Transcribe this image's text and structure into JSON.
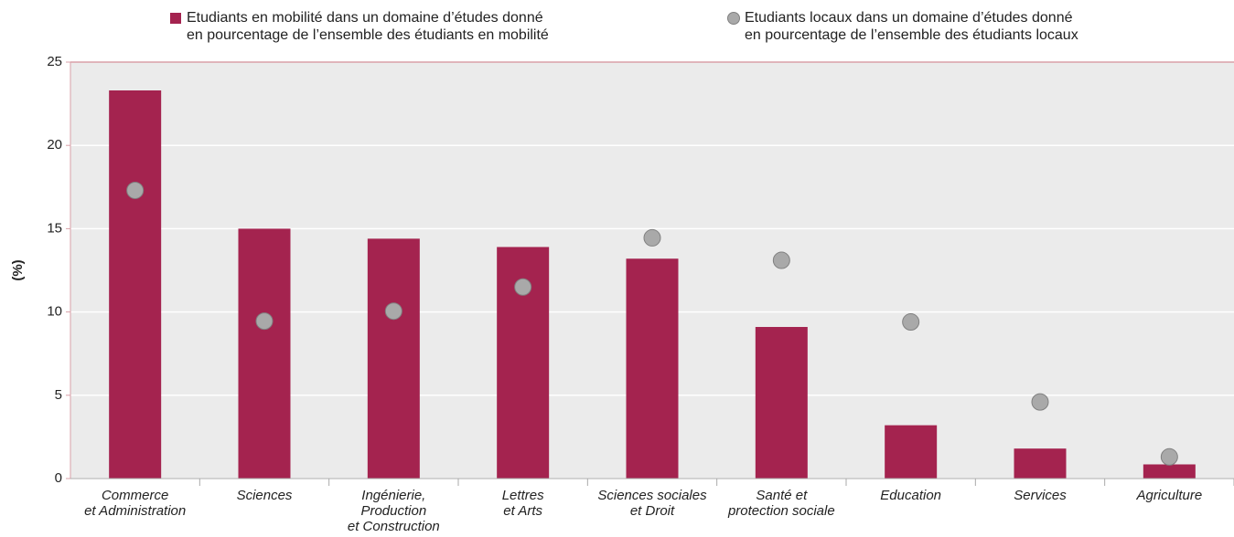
{
  "chart_data": {
    "type": "bar",
    "ylabel": "(%)",
    "categories": [
      "Commerce\net Administration",
      "Sciences",
      "Ingénierie,\nProduction\net Construction",
      "Lettres\net Arts",
      "Sciences sociales\net Droit",
      "Santé et\nprotection sociale",
      "Education",
      "Services",
      "Agriculture"
    ],
    "series": [
      {
        "name": "Etudiants en mobilité dans un domaine d’études donné\nen pourcentage de l’ensemble des étudiants en mobilité",
        "color": "#a4234f",
        "marker": "bar",
        "values": [
          23.3,
          15.0,
          14.4,
          13.9,
          13.2,
          9.1,
          3.2,
          1.8,
          0.85
        ]
      },
      {
        "name": "Etudiants locaux dans un domaine d’études donné\nen pourcentage de l’ensemble des étudiants locaux",
        "color": "#a9a9a9",
        "marker": "dot",
        "values": [
          17.3,
          9.45,
          10.05,
          11.5,
          14.45,
          13.1,
          9.4,
          4.6,
          1.3
        ]
      }
    ],
    "ylim": [
      0,
      25
    ],
    "yticks": [
      0,
      5,
      10,
      15,
      20,
      25
    ],
    "grid": true
  }
}
